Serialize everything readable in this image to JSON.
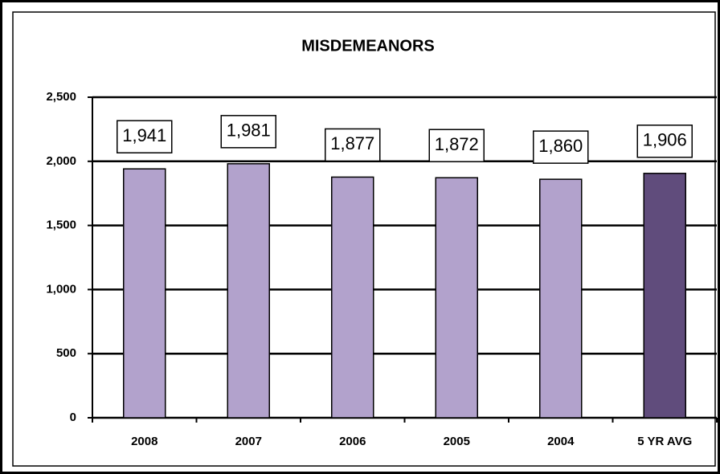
{
  "chart_data": {
    "type": "bar",
    "title": "MISDEMEANORS",
    "categories": [
      "2008",
      "2007",
      "2006",
      "2005",
      "2004",
      "5 YR AVG"
    ],
    "values": [
      1941,
      1981,
      1877,
      1872,
      1860,
      1906
    ],
    "value_labels": [
      "1,941",
      "1,981",
      "1,877",
      "1,872",
      "1,860",
      "1,906"
    ],
    "colors": [
      "#b2a2cc",
      "#b2a2cc",
      "#b2a2cc",
      "#b2a2cc",
      "#b2a2cc",
      "#604c7c"
    ],
    "ylim": [
      0,
      2500
    ],
    "yticks": [
      0,
      500,
      {
        "value": 1000,
        "label": "1,000"
      },
      {
        "value": 1500,
        "label": "1,500"
      },
      {
        "value": 2000,
        "label": "2,000"
      },
      {
        "value": 2500,
        "label": "2,500"
      }
    ],
    "grid": true
  }
}
